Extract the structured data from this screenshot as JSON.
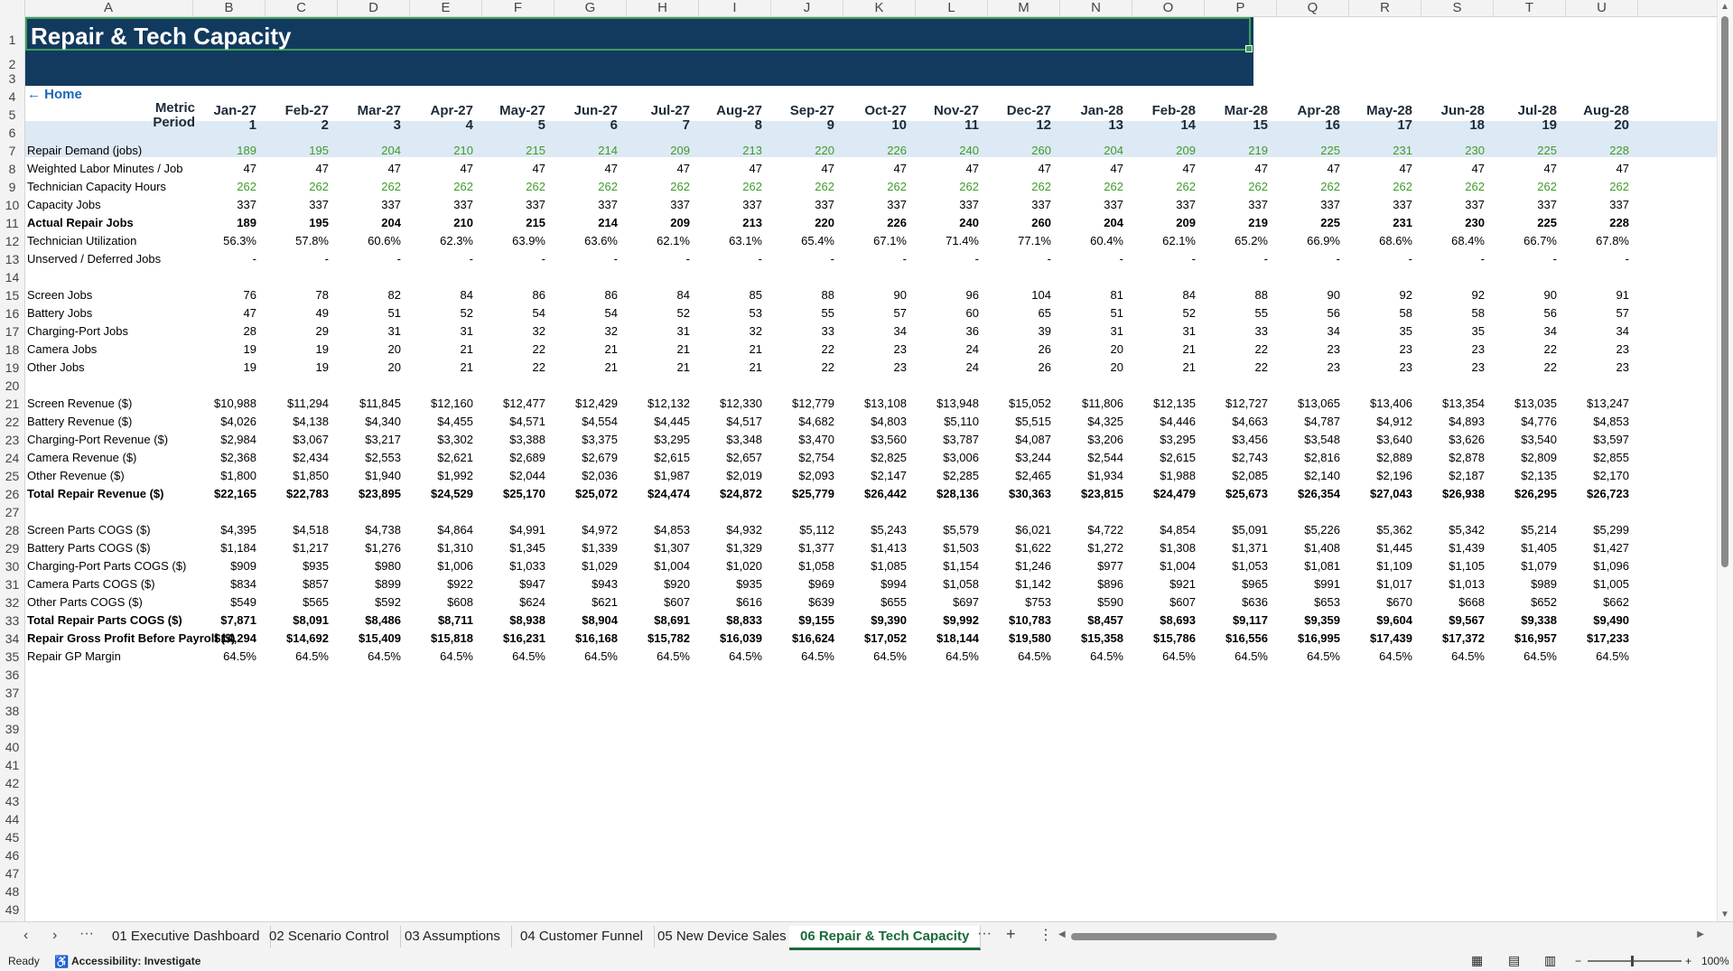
{
  "columns": [
    "A",
    "B",
    "C",
    "D",
    "E",
    "F",
    "G",
    "H",
    "I",
    "J",
    "K",
    "L",
    "M",
    "N",
    "O",
    "P",
    "Q",
    "R",
    "S",
    "T",
    "U"
  ],
  "rows": [
    "1",
    "2",
    "3",
    "4",
    "5",
    "6",
    "7",
    "8",
    "9",
    "10",
    "11",
    "12",
    "13",
    "14",
    "15",
    "16",
    "17",
    "18",
    "19",
    "20",
    "21",
    "22",
    "23",
    "24",
    "25",
    "26",
    "27",
    "28",
    "29",
    "30",
    "31",
    "32",
    "33",
    "34",
    "35",
    "36",
    "37",
    "38",
    "39",
    "40",
    "41",
    "42",
    "43",
    "44",
    "45",
    "46",
    "47",
    "48",
    "49"
  ],
  "sheet": {
    "title": "Repair & Tech Capacity",
    "home_link": "← Home",
    "header_labels": {
      "metric": "Metric",
      "period": "Period"
    },
    "months": [
      "Jan-27",
      "Feb-27",
      "Mar-27",
      "Apr-27",
      "May-27",
      "Jun-27",
      "Jul-27",
      "Aug-27",
      "Sep-27",
      "Oct-27",
      "Nov-27",
      "Dec-27",
      "Jan-28",
      "Feb-28",
      "Mar-28",
      "Apr-28",
      "May-28",
      "Jun-28",
      "Jul-28",
      "Aug-28"
    ],
    "periods": [
      "1",
      "2",
      "3",
      "4",
      "5",
      "6",
      "7",
      "8",
      "9",
      "10",
      "11",
      "12",
      "13",
      "14",
      "15",
      "16",
      "17",
      "18",
      "19",
      "20"
    ],
    "data_rows": [
      {
        "row": 7,
        "label": "Repair Demand (jobs)",
        "style": "green",
        "values": [
          "189",
          "195",
          "204",
          "210",
          "215",
          "214",
          "209",
          "213",
          "220",
          "226",
          "240",
          "260",
          "204",
          "209",
          "219",
          "225",
          "231",
          "230",
          "225",
          "228"
        ]
      },
      {
        "row": 8,
        "label": "Weighted Labor Minutes / Job",
        "style": "",
        "values": [
          "47",
          "47",
          "47",
          "47",
          "47",
          "47",
          "47",
          "47",
          "47",
          "47",
          "47",
          "47",
          "47",
          "47",
          "47",
          "47",
          "47",
          "47",
          "47",
          "47"
        ]
      },
      {
        "row": 9,
        "label": "Technician Capacity Hours",
        "style": "green",
        "values": [
          "262",
          "262",
          "262",
          "262",
          "262",
          "262",
          "262",
          "262",
          "262",
          "262",
          "262",
          "262",
          "262",
          "262",
          "262",
          "262",
          "262",
          "262",
          "262",
          "262"
        ]
      },
      {
        "row": 10,
        "label": "Capacity Jobs",
        "style": "",
        "values": [
          "337",
          "337",
          "337",
          "337",
          "337",
          "337",
          "337",
          "337",
          "337",
          "337",
          "337",
          "337",
          "337",
          "337",
          "337",
          "337",
          "337",
          "337",
          "337",
          "337"
        ]
      },
      {
        "row": 11,
        "label": "Actual Repair Jobs",
        "style": "bold",
        "values": [
          "189",
          "195",
          "204",
          "210",
          "215",
          "214",
          "209",
          "213",
          "220",
          "226",
          "240",
          "260",
          "204",
          "209",
          "219",
          "225",
          "231",
          "230",
          "225",
          "228"
        ]
      },
      {
        "row": 12,
        "label": "Technician Utilization",
        "style": "",
        "values": [
          "56.3%",
          "57.8%",
          "60.6%",
          "62.3%",
          "63.9%",
          "63.6%",
          "62.1%",
          "63.1%",
          "65.4%",
          "67.1%",
          "71.4%",
          "77.1%",
          "60.4%",
          "62.1%",
          "65.2%",
          "66.9%",
          "68.6%",
          "68.4%",
          "66.7%",
          "67.8%"
        ]
      },
      {
        "row": 13,
        "label": "Unserved / Deferred Jobs",
        "style": "",
        "values": [
          "-",
          "-",
          "-",
          "-",
          "-",
          "-",
          "-",
          "-",
          "-",
          "-",
          "-",
          "-",
          "-",
          "-",
          "-",
          "-",
          "-",
          "-",
          "-",
          "-"
        ]
      },
      {
        "row": 15,
        "label": "Screen Jobs",
        "style": "",
        "values": [
          "76",
          "78",
          "82",
          "84",
          "86",
          "86",
          "84",
          "85",
          "88",
          "90",
          "96",
          "104",
          "81",
          "84",
          "88",
          "90",
          "92",
          "92",
          "90",
          "91"
        ]
      },
      {
        "row": 16,
        "label": "Battery Jobs",
        "style": "",
        "values": [
          "47",
          "49",
          "51",
          "52",
          "54",
          "54",
          "52",
          "53",
          "55",
          "57",
          "60",
          "65",
          "51",
          "52",
          "55",
          "56",
          "58",
          "58",
          "56",
          "57"
        ]
      },
      {
        "row": 17,
        "label": "Charging-Port Jobs",
        "style": "",
        "values": [
          "28",
          "29",
          "31",
          "31",
          "32",
          "32",
          "31",
          "32",
          "33",
          "34",
          "36",
          "39",
          "31",
          "31",
          "33",
          "34",
          "35",
          "35",
          "34",
          "34"
        ]
      },
      {
        "row": 18,
        "label": "Camera Jobs",
        "style": "",
        "values": [
          "19",
          "19",
          "20",
          "21",
          "22",
          "21",
          "21",
          "21",
          "22",
          "23",
          "24",
          "26",
          "20",
          "21",
          "22",
          "23",
          "23",
          "23",
          "22",
          "23"
        ]
      },
      {
        "row": 19,
        "label": "Other Jobs",
        "style": "",
        "values": [
          "19",
          "19",
          "20",
          "21",
          "22",
          "21",
          "21",
          "21",
          "22",
          "23",
          "24",
          "26",
          "20",
          "21",
          "22",
          "23",
          "23",
          "23",
          "22",
          "23"
        ]
      },
      {
        "row": 21,
        "label": "Screen Revenue ($)",
        "style": "",
        "values": [
          "$10,988",
          "$11,294",
          "$11,845",
          "$12,160",
          "$12,477",
          "$12,429",
          "$12,132",
          "$12,330",
          "$12,779",
          "$13,108",
          "$13,948",
          "$15,052",
          "$11,806",
          "$12,135",
          "$12,727",
          "$13,065",
          "$13,406",
          "$13,354",
          "$13,035",
          "$13,247"
        ]
      },
      {
        "row": 22,
        "label": "Battery Revenue ($)",
        "style": "",
        "values": [
          "$4,026",
          "$4,138",
          "$4,340",
          "$4,455",
          "$4,571",
          "$4,554",
          "$4,445",
          "$4,517",
          "$4,682",
          "$4,803",
          "$5,110",
          "$5,515",
          "$4,325",
          "$4,446",
          "$4,663",
          "$4,787",
          "$4,912",
          "$4,893",
          "$4,776",
          "$4,853"
        ]
      },
      {
        "row": 23,
        "label": "Charging-Port Revenue ($)",
        "style": "",
        "values": [
          "$2,984",
          "$3,067",
          "$3,217",
          "$3,302",
          "$3,388",
          "$3,375",
          "$3,295",
          "$3,348",
          "$3,470",
          "$3,560",
          "$3,787",
          "$4,087",
          "$3,206",
          "$3,295",
          "$3,456",
          "$3,548",
          "$3,640",
          "$3,626",
          "$3,540",
          "$3,597"
        ]
      },
      {
        "row": 24,
        "label": "Camera Revenue ($)",
        "style": "",
        "values": [
          "$2,368",
          "$2,434",
          "$2,553",
          "$2,621",
          "$2,689",
          "$2,679",
          "$2,615",
          "$2,657",
          "$2,754",
          "$2,825",
          "$3,006",
          "$3,244",
          "$2,544",
          "$2,615",
          "$2,743",
          "$2,816",
          "$2,889",
          "$2,878",
          "$2,809",
          "$2,855"
        ]
      },
      {
        "row": 25,
        "label": "Other Revenue ($)",
        "style": "",
        "values": [
          "$1,800",
          "$1,850",
          "$1,940",
          "$1,992",
          "$2,044",
          "$2,036",
          "$1,987",
          "$2,019",
          "$2,093",
          "$2,147",
          "$2,285",
          "$2,465",
          "$1,934",
          "$1,988",
          "$2,085",
          "$2,140",
          "$2,196",
          "$2,187",
          "$2,135",
          "$2,170"
        ]
      },
      {
        "row": 26,
        "label": "Total Repair Revenue ($)",
        "style": "bold",
        "values": [
          "$22,165",
          "$22,783",
          "$23,895",
          "$24,529",
          "$25,170",
          "$25,072",
          "$24,474",
          "$24,872",
          "$25,779",
          "$26,442",
          "$28,136",
          "$30,363",
          "$23,815",
          "$24,479",
          "$25,673",
          "$26,354",
          "$27,043",
          "$26,938",
          "$26,295",
          "$26,723"
        ]
      },
      {
        "row": 28,
        "label": "Screen Parts COGS ($)",
        "style": "",
        "values": [
          "$4,395",
          "$4,518",
          "$4,738",
          "$4,864",
          "$4,991",
          "$4,972",
          "$4,853",
          "$4,932",
          "$5,112",
          "$5,243",
          "$5,579",
          "$6,021",
          "$4,722",
          "$4,854",
          "$5,091",
          "$5,226",
          "$5,362",
          "$5,342",
          "$5,214",
          "$5,299"
        ]
      },
      {
        "row": 29,
        "label": "Battery Parts COGS ($)",
        "style": "",
        "values": [
          "$1,184",
          "$1,217",
          "$1,276",
          "$1,310",
          "$1,345",
          "$1,339",
          "$1,307",
          "$1,329",
          "$1,377",
          "$1,413",
          "$1,503",
          "$1,622",
          "$1,272",
          "$1,308",
          "$1,371",
          "$1,408",
          "$1,445",
          "$1,439",
          "$1,405",
          "$1,427"
        ]
      },
      {
        "row": 30,
        "label": "Charging-Port Parts COGS ($)",
        "style": "",
        "values": [
          "$909",
          "$935",
          "$980",
          "$1,006",
          "$1,033",
          "$1,029",
          "$1,004",
          "$1,020",
          "$1,058",
          "$1,085",
          "$1,154",
          "$1,246",
          "$977",
          "$1,004",
          "$1,053",
          "$1,081",
          "$1,109",
          "$1,105",
          "$1,079",
          "$1,096"
        ]
      },
      {
        "row": 31,
        "label": "Camera Parts COGS ($)",
        "style": "",
        "values": [
          "$834",
          "$857",
          "$899",
          "$922",
          "$947",
          "$943",
          "$920",
          "$935",
          "$969",
          "$994",
          "$1,058",
          "$1,142",
          "$896",
          "$921",
          "$965",
          "$991",
          "$1,017",
          "$1,013",
          "$989",
          "$1,005"
        ]
      },
      {
        "row": 32,
        "label": "Other Parts COGS ($)",
        "style": "",
        "values": [
          "$549",
          "$565",
          "$592",
          "$608",
          "$624",
          "$621",
          "$607",
          "$616",
          "$639",
          "$655",
          "$697",
          "$753",
          "$590",
          "$607",
          "$636",
          "$653",
          "$670",
          "$668",
          "$652",
          "$662"
        ]
      },
      {
        "row": 33,
        "label": "Total Repair Parts COGS ($)",
        "style": "bold",
        "values": [
          "$7,871",
          "$8,091",
          "$8,486",
          "$8,711",
          "$8,938",
          "$8,904",
          "$8,691",
          "$8,833",
          "$9,155",
          "$9,390",
          "$9,992",
          "$10,783",
          "$8,457",
          "$8,693",
          "$9,117",
          "$9,359",
          "$9,604",
          "$9,567",
          "$9,338",
          "$9,490"
        ]
      },
      {
        "row": 34,
        "label": "Repair Gross Profit Before Payroll ($)",
        "style": "bold",
        "values": [
          "$14,294",
          "$14,692",
          "$15,409",
          "$15,818",
          "$16,231",
          "$16,168",
          "$15,782",
          "$16,039",
          "$16,624",
          "$17,052",
          "$18,144",
          "$19,580",
          "$15,358",
          "$15,786",
          "$16,556",
          "$16,995",
          "$17,439",
          "$17,372",
          "$16,957",
          "$17,233"
        ]
      },
      {
        "row": 35,
        "label": "Repair GP Margin",
        "style": "",
        "values": [
          "64.5%",
          "64.5%",
          "64.5%",
          "64.5%",
          "64.5%",
          "64.5%",
          "64.5%",
          "64.5%",
          "64.5%",
          "64.5%",
          "64.5%",
          "64.5%",
          "64.5%",
          "64.5%",
          "64.5%",
          "64.5%",
          "64.5%",
          "64.5%",
          "64.5%",
          "64.5%"
        ]
      }
    ]
  },
  "tabbar": {
    "nav_prev": "‹",
    "nav_next": "›",
    "more_left": "···",
    "tabs": [
      "01 Executive Dashboard",
      "02 Scenario Control",
      "03 Assumptions",
      "04 Customer Funnel",
      "05 New Device Sales",
      "06 Repair & Tech Capacity"
    ],
    "active_tab": "06 Repair & Tech Capacity",
    "more_right": "···",
    "add": "+",
    "options": "⋮"
  },
  "statusbar": {
    "ready": "Ready",
    "accessibility": "Accessibility: Investigate",
    "zoom": "100%",
    "zoom_minus": "−",
    "zoom_plus": "+"
  }
}
